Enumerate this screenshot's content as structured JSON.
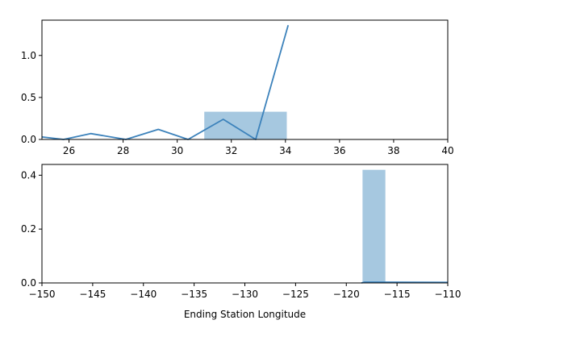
{
  "chart_data": [
    {
      "type": "histogram",
      "title": "",
      "xlabel": "",
      "ylabel": "",
      "xlim": [
        25,
        40
      ],
      "ylim": [
        0,
        1.42
      ],
      "x_ticks": [
        26,
        28,
        30,
        32,
        34,
        36,
        38,
        40
      ],
      "x_tick_labels": [
        "26",
        "28",
        "30",
        "32",
        "34",
        "36",
        "38",
        "40"
      ],
      "y_ticks": [
        0.0,
        0.5,
        1.0
      ],
      "y_tick_labels": [
        "0.0",
        "0.5",
        "1.0"
      ],
      "bars": [
        {
          "x0": 31.0,
          "x1": 34.05,
          "height": 0.33
        }
      ],
      "kde_line": {
        "x": [
          25.0,
          25.8,
          26.8,
          28.1,
          29.3,
          30.4,
          31.7,
          32.9,
          34.1
        ],
        "y": [
          0.03,
          0.0,
          0.07,
          0.0,
          0.12,
          0.0,
          0.24,
          0.0,
          1.36
        ]
      },
      "bar_color": "#a6c8e0",
      "line_color": "#3c82bb"
    },
    {
      "type": "histogram",
      "title": "",
      "xlabel": "Ending Station Longitude",
      "ylabel": "",
      "xlim": [
        -150,
        -110
      ],
      "ylim": [
        0,
        0.44
      ],
      "x_ticks": [
        -150,
        -145,
        -140,
        -135,
        -130,
        -125,
        -120,
        -115,
        -110
      ],
      "x_tick_labels": [
        "−150",
        "−145",
        "−140",
        "−135",
        "−130",
        "−125",
        "−120",
        "−115",
        "−110"
      ],
      "y_ticks": [
        0.0,
        0.2,
        0.4
      ],
      "y_tick_labels": [
        "0.0",
        "0.2",
        "0.4"
      ],
      "bars": [
        {
          "x0": -118.4,
          "x1": -116.15,
          "height": 0.42
        }
      ],
      "kde_line": {
        "x": [
          -118.5,
          -118.2,
          -117.0,
          -110.0
        ],
        "y": [
          0.0,
          0.003,
          0.003,
          0.002
        ]
      },
      "bar_color": "#a6c8e0",
      "line_color": "#3c82bb"
    }
  ]
}
